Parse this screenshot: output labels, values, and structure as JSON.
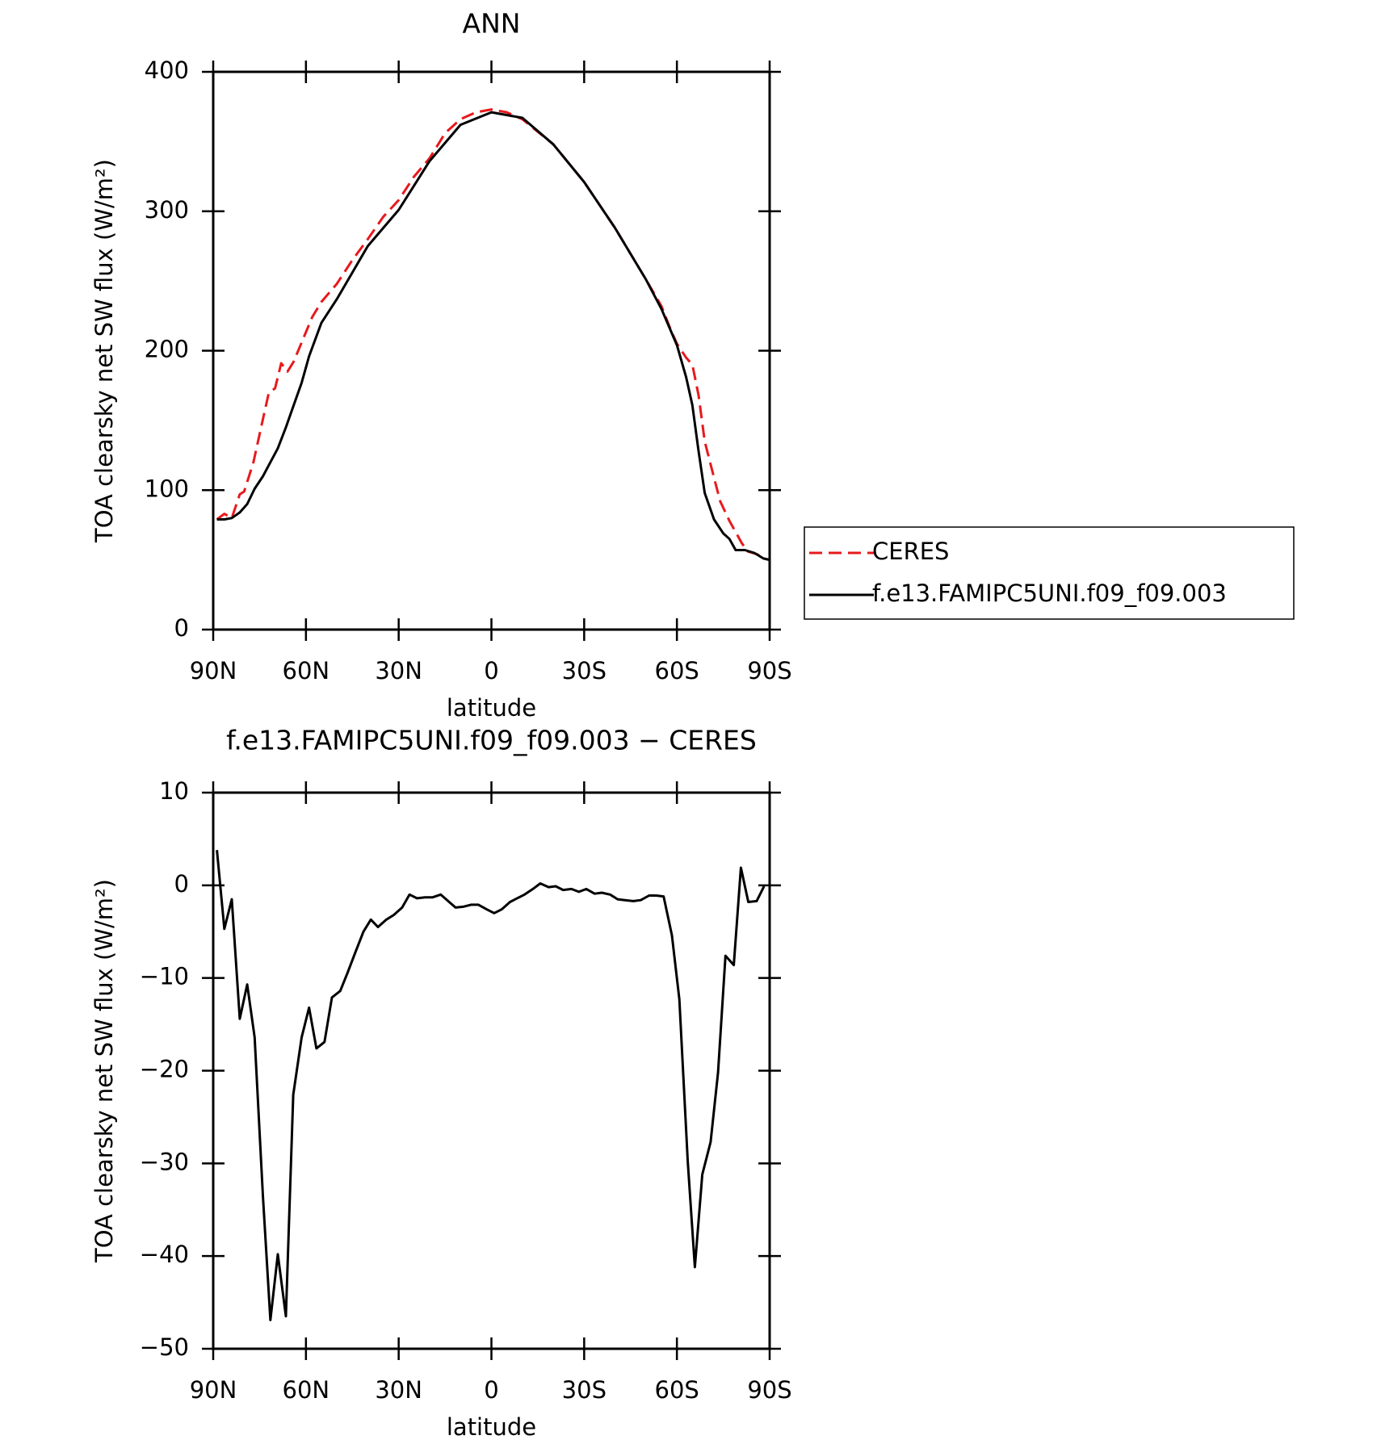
{
  "chart_data": [
    {
      "type": "line",
      "title": "ANN",
      "x_label": "latitude",
      "y_label": "TOA clearsky net SW flux (W/m²)",
      "xlim": [
        90,
        -90
      ],
      "xticks": [
        {
          "value": 90,
          "label": "90N"
        },
        {
          "value": 60,
          "label": "60N"
        },
        {
          "value": 30,
          "label": "30N"
        },
        0,
        {
          "value": -30,
          "label": "30S"
        },
        {
          "value": -60,
          "label": "60S"
        },
        {
          "value": -90,
          "label": "90S"
        }
      ],
      "ylim": [
        0,
        400
      ],
      "yticks": [
        0,
        100,
        200,
        300,
        400
      ],
      "legend": "outside right",
      "series": [
        {
          "name": "CERES",
          "color": "#e8191c",
          "dash": true,
          "x": [
            88.8,
            86.4,
            84,
            81.4,
            80,
            77,
            74,
            72,
            70,
            68,
            66,
            64,
            61,
            58,
            55,
            50,
            45,
            40,
            35,
            30,
            25,
            20,
            15,
            10,
            5,
            0,
            -5,
            -10,
            -20,
            -30,
            -40,
            -50,
            -55,
            -58,
            -60,
            -63,
            -65,
            -67,
            -69,
            -72,
            -74,
            -77,
            -79,
            -81,
            -83,
            -86,
            -88,
            -90
          ],
          "values": [
            79,
            83,
            80,
            97,
            99,
            120,
            150,
            170,
            173,
            191,
            185,
            192,
            208,
            224,
            235,
            248,
            265,
            280,
            296,
            308,
            325,
            338,
            356,
            366,
            371,
            373,
            371,
            366,
            348,
            321,
            288,
            251,
            232,
            215,
            205,
            195,
            190,
            168,
            135,
            109,
            92,
            78,
            70,
            62,
            56,
            54,
            51,
            50
          ]
        },
        {
          "name": "f.e13.FAMIPC5UNI.f09_f09.003",
          "color": "#000000",
          "dash": false,
          "x": [
            88.8,
            86.4,
            84,
            81.4,
            79,
            76.6,
            73.9,
            71.5,
            69.1,
            66.5,
            64.1,
            61.4,
            59,
            55,
            50,
            40,
            30,
            20,
            10,
            0,
            -10,
            -20,
            -30,
            -40,
            -50,
            -55,
            -60,
            -63,
            -65,
            -67,
            -69,
            -72,
            -75,
            -77,
            -79,
            -82,
            -85,
            -88,
            -90
          ],
          "values": [
            79,
            79,
            80,
            84,
            90,
            101,
            110,
            120,
            130,
            145,
            160,
            177,
            196,
            220,
            237,
            275,
            301,
            336,
            362,
            371,
            367,
            348,
            321,
            288,
            251,
            230,
            204,
            181,
            161,
            128,
            98,
            79,
            69,
            65,
            57,
            57,
            55,
            51,
            50
          ]
        }
      ]
    },
    {
      "type": "line",
      "title": "f.e13.FAMIPC5UNI.f09_f09.003 − CERES",
      "x_label": "latitude",
      "y_label": "TOA clearsky net SW flux (W/m²)",
      "xlim": [
        90,
        -90
      ],
      "xticks": [
        {
          "value": 90,
          "label": "90N"
        },
        {
          "value": 60,
          "label": "60N"
        },
        {
          "value": 30,
          "label": "30N"
        },
        0,
        {
          "value": -30,
          "label": "30S"
        },
        {
          "value": -60,
          "label": "60S"
        },
        {
          "value": -90,
          "label": "90S"
        }
      ],
      "ylim": [
        -50,
        10
      ],
      "yticks": [
        {
          "value": -50,
          "label": "−50"
        },
        {
          "value": -40,
          "label": "−40"
        },
        {
          "value": -30,
          "label": "−30"
        },
        {
          "value": -20,
          "label": "−20"
        },
        {
          "value": -10,
          "label": "−10"
        },
        0,
        10
      ],
      "series": [
        {
          "color": "#000000",
          "dash": false,
          "x": [
            88.8,
            86.4,
            84.0,
            81.4,
            79.0,
            76.6,
            73.9,
            71.5,
            69.1,
            66.5,
            64.1,
            61.4,
            59.0,
            56.6,
            54.0,
            51.6,
            48.9,
            46.5,
            44.1,
            41.4,
            39.0,
            36.7,
            34.0,
            31.6,
            28.9,
            26.5,
            24.1,
            21.5,
            19.1,
            16.4,
            14.0,
            11.6,
            8.9,
            6.6,
            4.2,
            1.5,
            -0.9,
            -3.3,
            -6.0,
            -8.3,
            -10.7,
            -13.4,
            -15.8,
            -18.5,
            -20.8,
            -23.2,
            -25.9,
            -28.3,
            -30.7,
            -33.4,
            -35.7,
            -38.4,
            -40.8,
            -43.2,
            -45.9,
            -48.3,
            -51.0,
            -53.3,
            -55.7,
            -58.4,
            -60.8,
            -63.5,
            -65.8,
            -68.2,
            -70.9,
            -73.3,
            -75.7,
            -78.4,
            -80.7,
            -83.1,
            -85.8,
            -88.2
          ],
          "values": [
            3.8,
            -4.7,
            -1.5,
            -14.4,
            -10.7,
            -16.4,
            -33.6,
            -46.9,
            -39.8,
            -46.5,
            -22.6,
            -16.4,
            -13.2,
            -17.6,
            -16.9,
            -12.1,
            -11.4,
            -9.4,
            -7.3,
            -5.0,
            -3.7,
            -4.5,
            -3.7,
            -3.2,
            -2.4,
            -1.0,
            -1.4,
            -1.3,
            -1.3,
            -1.0,
            -1.7,
            -2.4,
            -2.3,
            -2.1,
            -2.1,
            -2.6,
            -3.0,
            -2.6,
            -1.8,
            -1.4,
            -1.0,
            -0.4,
            0.2,
            -0.2,
            -0.1,
            -0.5,
            -0.4,
            -0.7,
            -0.4,
            -0.9,
            -0.8,
            -1.0,
            -1.5,
            -1.6,
            -1.7,
            -1.6,
            -1.1,
            -1.1,
            -1.2,
            -5.4,
            -12.3,
            -29.8,
            -41.2,
            -31.2,
            -27.7,
            -20.2,
            -7.6,
            -8.6,
            1.9,
            -1.8,
            -1.7,
            -0.1
          ]
        }
      ]
    }
  ]
}
